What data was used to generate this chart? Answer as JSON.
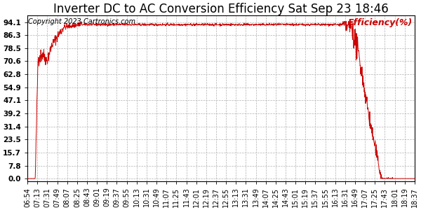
{
  "title": "Inverter DC to AC Conversion Efficiency Sat Sep 23 18:46",
  "ylabel": "Efficiency(%)",
  "copyright": "Copyright 2023 Cartronics.com",
  "line_color": "#cc0000",
  "bg_color": "#ffffff",
  "grid_color": "#b0b0b0",
  "yticks": [
    0.0,
    7.8,
    15.7,
    23.5,
    31.4,
    39.2,
    47.1,
    54.9,
    62.8,
    70.6,
    78.5,
    86.3,
    94.1
  ],
  "ylim": [
    -1.5,
    98
  ],
  "xtick_labels": [
    "06:54",
    "07:13",
    "07:31",
    "07:49",
    "08:07",
    "08:25",
    "08:43",
    "09:01",
    "09:19",
    "09:37",
    "09:55",
    "10:13",
    "10:31",
    "10:49",
    "11:07",
    "11:25",
    "11:43",
    "12:01",
    "12:19",
    "12:37",
    "12:55",
    "13:13",
    "13:31",
    "13:49",
    "14:07",
    "14:25",
    "14:43",
    "15:01",
    "15:19",
    "15:37",
    "15:55",
    "16:13",
    "16:31",
    "16:49",
    "17:07",
    "17:25",
    "17:43",
    "18:01",
    "18:19",
    "18:37"
  ],
  "title_fontsize": 12,
  "axis_fontsize": 7.5,
  "ylabel_fontsize": 9,
  "copyright_fontsize": 7
}
